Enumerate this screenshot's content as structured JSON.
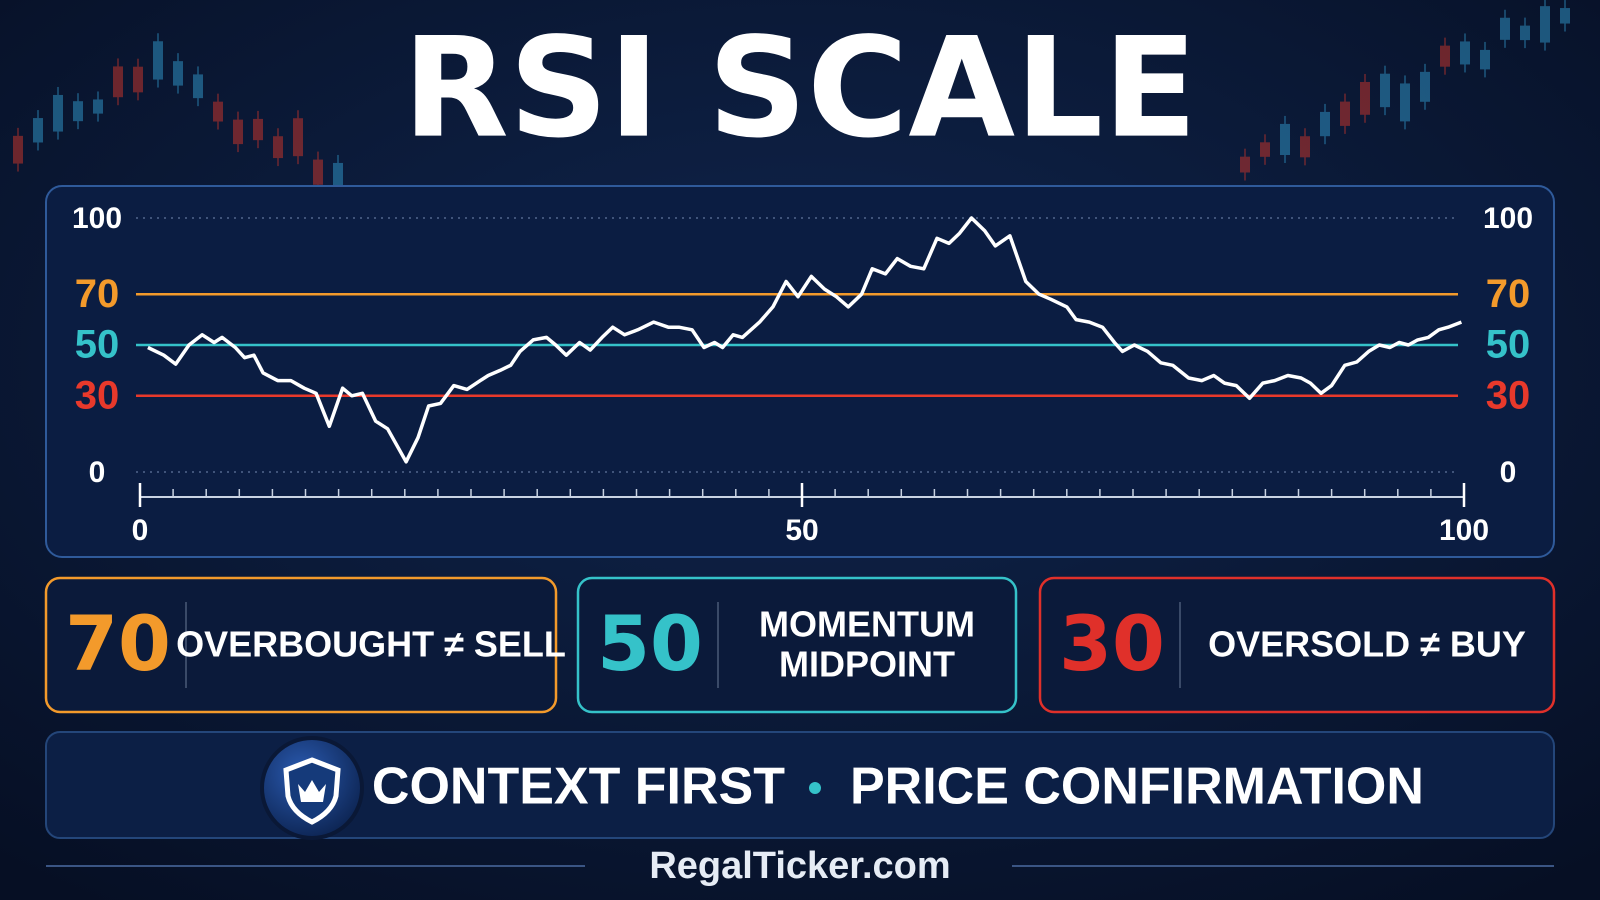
{
  "chart_data": {
    "type": "line",
    "title": "RSI SCALE",
    "x": [
      0.6,
      1.8,
      2.7,
      3.7,
      4.7,
      5.6,
      6.2,
      7.2,
      7.9,
      8.6,
      9.3,
      10.4,
      11.4,
      12.4,
      13.3,
      14.3,
      15.3,
      16.0,
      16.8,
      17.8,
      18.7,
      20.1,
      21.0,
      21.8,
      22.7,
      23.7,
      24.7,
      25.7,
      26.3,
      27.2,
      28.0,
      28.7,
      29.7,
      30.7,
      31.4,
      32.2,
      33.2,
      34.0,
      34.9,
      35.7,
      36.6,
      37.6,
      38.8,
      39.9,
      40.7,
      41.7,
      42.6,
      43.4,
      44.0,
      44.8,
      45.5,
      46.8,
      47.8,
      48.8,
      49.7,
      50.7,
      51.7,
      52.6,
      53.5,
      54.5,
      55.3,
      56.3,
      57.2,
      58.2,
      59.2,
      60.2,
      61.1,
      61.9,
      62.8,
      63.8,
      64.6,
      65.7,
      66.9,
      67.9,
      68.8,
      70.0,
      70.7,
      71.7,
      72.7,
      73.6,
      74.2,
      75.1,
      76.1,
      77.1,
      78.0,
      79.2,
      80.2,
      81.1,
      81.9,
      82.8,
      83.8,
      84.8,
      85.7,
      86.7,
      87.7,
      88.4,
      89.2,
      90.0,
      91.0,
      91.9,
      92.8,
      93.6,
      94.4,
      95.1,
      95.8,
      96.5,
      97.3,
      98.1,
      98.8,
      99.8
    ],
    "values": [
      49,
      46,
      42.5,
      50,
      54,
      51,
      53,
      49,
      45,
      46,
      39,
      36,
      36,
      33,
      31,
      18,
      33,
      30,
      31,
      20,
      17,
      4,
      13.5,
      26,
      27,
      34,
      32.5,
      36,
      38,
      40,
      42,
      47.5,
      52,
      53,
      50,
      46,
      51,
      48,
      53,
      57,
      54,
      56,
      59,
      57,
      57,
      56,
      49,
      51,
      49,
      54,
      53,
      59,
      65,
      75,
      69,
      77,
      72,
      69,
      65,
      70,
      80,
      78,
      84,
      81,
      80,
      92,
      90,
      94,
      100,
      95,
      89,
      93,
      75,
      70,
      68,
      65,
      60,
      59,
      57,
      51,
      47.5,
      50,
      47.5,
      43,
      42,
      37,
      36,
      38,
      35,
      34,
      29,
      35,
      36,
      38,
      37,
      35,
      31,
      34,
      42,
      43.3,
      47.5,
      50,
      49,
      51,
      50,
      52,
      53,
      56,
      57,
      59
    ],
    "color": "#ffffff",
    "xlim": [
      0,
      100
    ],
    "xticks": [
      0,
      50,
      100
    ],
    "xminorticks": [
      0,
      2.5,
      5,
      7.5,
      10,
      12.5,
      15,
      17.5,
      20,
      22.5,
      25,
      27.5,
      30,
      32.5,
      35,
      37.5,
      40,
      42.5,
      45,
      47.5,
      50,
      52.5,
      55,
      57.5,
      60,
      62.5,
      65,
      67.5,
      70,
      72.5,
      75,
      77.5,
      80,
      82.5,
      85,
      87.5,
      90,
      92.5,
      95,
      97.5,
      100
    ],
    "ylim": [
      0,
      100
    ],
    "yticks": [
      0,
      30,
      50,
      70,
      100
    ],
    "ytick_colors": [
      "#ffffff",
      "#e8392b",
      "#35c2c9",
      "#f39a2b",
      "#ffffff"
    ],
    "ytick_line_styles": [
      "dotted",
      "solid",
      "solid",
      "solid",
      "dotted"
    ],
    "cards": [
      {
        "value": 70,
        "label": [
          "OVERBOUGHT ≠ SELL"
        ],
        "color": "#f39a2b"
      },
      {
        "value": 50,
        "label": [
          "MOMENTUM",
          "MIDPOINT"
        ],
        "color": "#35c2c9"
      },
      {
        "value": 30,
        "label": [
          "OVERSOLD ≠ BUY"
        ],
        "color": "#e0302a"
      }
    ],
    "banner": [
      "CONTEXT FIRST",
      "PRICE CONFIRMATION"
    ],
    "footer": "RegalTicker.com"
  }
}
